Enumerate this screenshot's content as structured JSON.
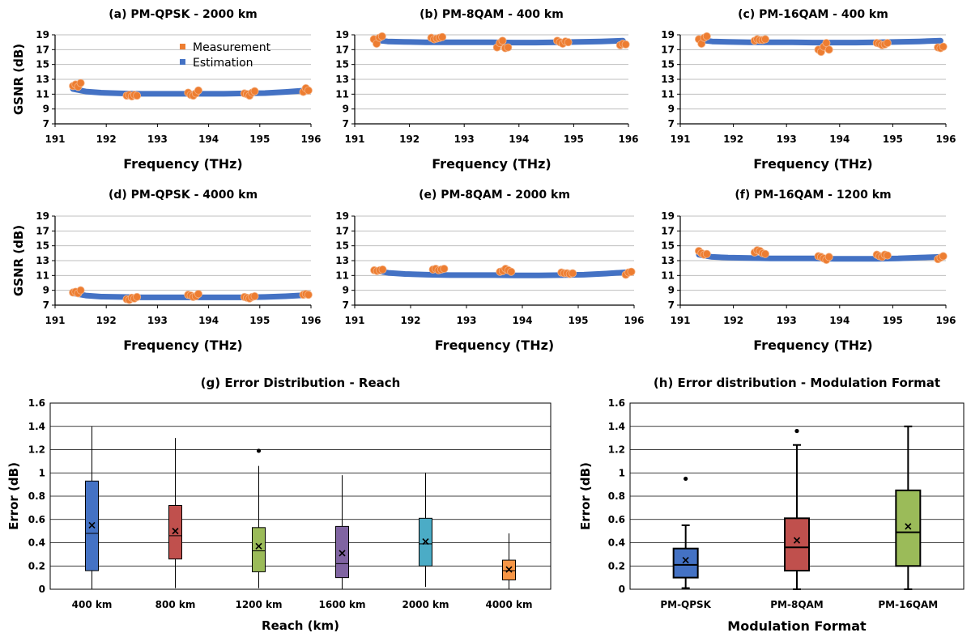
{
  "colors": {
    "measurement": "#ED7D31",
    "estimation": "#4472C4",
    "grid": "#BFBFBF",
    "box_400km": "#4472C4",
    "box_800km": "#C0504D",
    "box_1200km": "#9BBB59",
    "box_1600km": "#8064A2",
    "box_2000km": "#4BACC6",
    "box_4000km": "#F79646",
    "box_qpsk": "#4472C4",
    "box_8qam": "#C0504D",
    "box_16qam": "#9BBB59"
  },
  "chart_data": [
    {
      "type": "scatter",
      "panel": "a",
      "title": "(a)   PM-QPSK - 2000 km",
      "xlabel": "Frequency (THz)",
      "ylabel": "GSNR (dB)",
      "xlim": [
        191,
        196
      ],
      "ylim": [
        7,
        19
      ],
      "xticks": [
        191,
        192,
        193,
        194,
        195,
        196
      ],
      "yticks": [
        7,
        9,
        11,
        13,
        15,
        17,
        19
      ],
      "grid": true,
      "legend": "top-center",
      "series": [
        {
          "name": "Estimation",
          "x": [
            191.35,
            191.6,
            191.9,
            192.3,
            192.7,
            193.1,
            193.5,
            193.9,
            194.3,
            194.7,
            195.1,
            195.5,
            195.9
          ],
          "y": [
            11.7,
            11.35,
            11.2,
            11.1,
            11.05,
            11.05,
            11.05,
            11.05,
            11.05,
            11.1,
            11.15,
            11.3,
            11.5
          ]
        },
        {
          "name": "Measurement",
          "x": [
            191.35,
            191.4,
            191.45,
            191.5,
            192.4,
            192.45,
            192.5,
            192.55,
            192.6,
            193.6,
            193.65,
            193.7,
            193.75,
            193.8,
            194.7,
            194.75,
            194.8,
            194.85,
            194.9,
            195.85,
            195.9,
            195.95
          ],
          "y": [
            12.1,
            12.3,
            12.0,
            12.5,
            10.8,
            10.9,
            10.7,
            10.9,
            10.8,
            11.2,
            10.9,
            10.8,
            11.1,
            11.5,
            11.1,
            11.0,
            10.8,
            11.2,
            11.4,
            11.3,
            11.8,
            11.5
          ]
        }
      ]
    },
    {
      "type": "scatter",
      "panel": "b",
      "title": "(b)   PM-8QAM - 400 km",
      "xlabel": "Frequency (THz)",
      "ylabel": "",
      "xlim": [
        191,
        196
      ],
      "ylim": [
        7,
        19
      ],
      "xticks": [
        191,
        192,
        193,
        194,
        195,
        196
      ],
      "yticks": [
        7,
        9,
        11,
        13,
        15,
        17,
        19
      ],
      "grid": true,
      "series": [
        {
          "name": "Estimation",
          "x": [
            191.35,
            191.6,
            191.9,
            192.3,
            192.7,
            193.1,
            193.5,
            193.9,
            194.3,
            194.7,
            195.1,
            195.5,
            195.9
          ],
          "y": [
            18.3,
            18.1,
            18.05,
            18.0,
            18.0,
            18.0,
            18.0,
            17.95,
            17.95,
            18.0,
            18.05,
            18.1,
            18.2
          ]
        },
        {
          "name": "Measurement",
          "x": [
            191.35,
            191.4,
            191.45,
            191.5,
            192.4,
            192.45,
            192.5,
            192.55,
            192.6,
            193.6,
            193.65,
            193.7,
            193.75,
            193.8,
            194.7,
            194.75,
            194.8,
            194.85,
            194.9,
            195.85,
            195.9,
            195.95
          ],
          "y": [
            18.4,
            17.8,
            18.6,
            18.8,
            18.6,
            18.4,
            18.5,
            18.6,
            18.7,
            17.3,
            17.9,
            18.2,
            17.2,
            17.3,
            18.2,
            18.0,
            17.8,
            18.1,
            18.0,
            17.6,
            17.8,
            17.7
          ]
        }
      ]
    },
    {
      "type": "scatter",
      "panel": "c",
      "title": "(c)   PM-16QAM - 400 km",
      "xlabel": "Frequency (THz)",
      "ylabel": "",
      "xlim": [
        191,
        196
      ],
      "ylim": [
        7,
        19
      ],
      "xticks": [
        191,
        192,
        193,
        194,
        195,
        196
      ],
      "yticks": [
        7,
        9,
        11,
        13,
        15,
        17,
        19
      ],
      "grid": true,
      "series": [
        {
          "name": "Estimation",
          "x": [
            191.35,
            191.6,
            191.9,
            192.3,
            192.7,
            193.1,
            193.5,
            193.9,
            194.3,
            194.7,
            195.1,
            195.5,
            195.9
          ],
          "y": [
            18.3,
            18.1,
            18.05,
            18.0,
            18.0,
            18.0,
            17.95,
            17.95,
            17.95,
            18.0,
            18.05,
            18.1,
            18.2
          ]
        },
        {
          "name": "Measurement",
          "x": [
            191.35,
            191.4,
            191.45,
            191.5,
            192.4,
            192.45,
            192.5,
            192.55,
            192.6,
            193.6,
            193.65,
            193.7,
            193.75,
            193.8,
            194.7,
            194.75,
            194.8,
            194.85,
            194.9,
            195.85,
            195.9,
            195.95
          ],
          "y": [
            18.4,
            17.8,
            18.6,
            18.8,
            18.2,
            18.4,
            18.3,
            18.3,
            18.4,
            17.0,
            16.7,
            17.4,
            17.9,
            17.0,
            17.9,
            17.8,
            17.6,
            17.7,
            17.9,
            17.3,
            17.2,
            17.4
          ]
        }
      ]
    },
    {
      "type": "scatter",
      "panel": "d",
      "title": "(d)   PM-QPSK - 4000 km",
      "xlabel": "Frequency (THz)",
      "ylabel": "GSNR (dB)",
      "xlim": [
        191,
        196
      ],
      "ylim": [
        7,
        19
      ],
      "xticks": [
        191,
        192,
        193,
        194,
        195,
        196
      ],
      "yticks": [
        7,
        9,
        11,
        13,
        15,
        17,
        19
      ],
      "grid": true,
      "series": [
        {
          "name": "Estimation",
          "x": [
            191.35,
            191.6,
            191.9,
            192.3,
            192.7,
            193.1,
            193.5,
            193.9,
            194.3,
            194.7,
            195.1,
            195.5,
            195.9
          ],
          "y": [
            8.6,
            8.3,
            8.15,
            8.1,
            8.05,
            8.05,
            8.05,
            8.05,
            8.05,
            8.05,
            8.1,
            8.2,
            8.35
          ]
        },
        {
          "name": "Measurement",
          "x": [
            191.35,
            191.4,
            191.45,
            191.5,
            192.4,
            192.45,
            192.5,
            192.55,
            192.6,
            193.6,
            193.65,
            193.7,
            193.75,
            193.8,
            194.7,
            194.75,
            194.8,
            194.85,
            194.9,
            195.85,
            195.9,
            195.95
          ],
          "y": [
            8.7,
            8.8,
            8.6,
            9.0,
            7.8,
            7.7,
            8.0,
            7.9,
            8.1,
            8.4,
            8.3,
            8.1,
            8.2,
            8.5,
            8.1,
            8.0,
            7.9,
            8.1,
            8.2,
            8.4,
            8.5,
            8.4
          ]
        }
      ]
    },
    {
      "type": "scatter",
      "panel": "e",
      "title": "(e)   PM-8QAM - 2000 km",
      "xlabel": "Frequency (THz)",
      "ylabel": "",
      "xlim": [
        191,
        196
      ],
      "ylim": [
        7,
        19
      ],
      "xticks": [
        191,
        192,
        193,
        194,
        195,
        196
      ],
      "yticks": [
        7,
        9,
        11,
        13,
        15,
        17,
        19
      ],
      "grid": true,
      "series": [
        {
          "name": "Estimation",
          "x": [
            191.35,
            191.6,
            191.9,
            192.3,
            192.7,
            193.1,
            193.5,
            193.9,
            194.3,
            194.7,
            195.1,
            195.5,
            195.9
          ],
          "y": [
            11.7,
            11.35,
            11.2,
            11.1,
            11.05,
            11.05,
            11.05,
            11.0,
            11.0,
            11.05,
            11.1,
            11.25,
            11.45
          ]
        },
        {
          "name": "Measurement",
          "x": [
            191.35,
            191.4,
            191.45,
            191.5,
            192.4,
            192.45,
            192.5,
            192.55,
            192.6,
            193.6,
            193.65,
            193.7,
            193.75,
            193.8,
            194.7,
            194.75,
            194.8,
            194.85,
            194.9,
            195.85,
            195.9,
            195.95
          ],
          "y": [
            11.7,
            11.6,
            11.7,
            11.8,
            11.8,
            11.9,
            11.7,
            11.8,
            11.9,
            11.5,
            11.6,
            11.9,
            11.7,
            11.5,
            11.4,
            11.3,
            11.3,
            11.2,
            11.3,
            11.1,
            11.4,
            11.5
          ]
        }
      ]
    },
    {
      "type": "scatter",
      "panel": "f",
      "title": "(f)   PM-16QAM - 1200 km",
      "xlabel": "Frequency (THz)",
      "ylabel": "",
      "xlim": [
        191,
        196
      ],
      "ylim": [
        7,
        19
      ],
      "xticks": [
        191,
        192,
        193,
        194,
        195,
        196
      ],
      "yticks": [
        7,
        9,
        11,
        13,
        15,
        17,
        19
      ],
      "grid": true,
      "series": [
        {
          "name": "Estimation",
          "x": [
            191.35,
            191.6,
            191.9,
            192.3,
            192.7,
            193.1,
            193.5,
            193.9,
            194.3,
            194.7,
            195.1,
            195.5,
            195.9
          ],
          "y": [
            13.8,
            13.5,
            13.4,
            13.35,
            13.3,
            13.3,
            13.3,
            13.25,
            13.25,
            13.25,
            13.3,
            13.4,
            13.5
          ]
        },
        {
          "name": "Measurement",
          "x": [
            191.35,
            191.4,
            191.45,
            191.5,
            192.4,
            192.45,
            192.5,
            192.55,
            192.6,
            193.6,
            193.65,
            193.7,
            193.75,
            193.8,
            194.7,
            194.75,
            194.8,
            194.85,
            194.9,
            195.85,
            195.9,
            195.95
          ],
          "y": [
            14.3,
            14.0,
            13.8,
            13.9,
            14.1,
            14.4,
            14.3,
            14.0,
            13.9,
            13.6,
            13.5,
            13.3,
            13.1,
            13.5,
            13.8,
            13.6,
            13.5,
            13.8,
            13.7,
            13.2,
            13.4,
            13.6
          ]
        }
      ]
    },
    {
      "type": "box",
      "panel": "g",
      "title": "(g)   Error Distribution - Reach",
      "xlabel": "Reach (km)",
      "ylabel": "Error (dB)",
      "ylim": [
        0,
        1.6
      ],
      "yticks": [
        "0",
        "0.2",
        "0.4",
        "0.6",
        "0.8",
        "1",
        "1.2",
        "1.4",
        "1.6"
      ],
      "grid": true,
      "categories": [
        "400 km",
        "800 km",
        "1200 km",
        "1600 km",
        "2000 km",
        "4000 km"
      ],
      "boxes": [
        {
          "min": 0.0,
          "q1": 0.16,
          "median": 0.48,
          "q3": 0.93,
          "max": 1.4,
          "mean": 0.55,
          "outliers": []
        },
        {
          "min": 0.01,
          "q1": 0.26,
          "median": 0.46,
          "q3": 0.72,
          "max": 1.3,
          "mean": 0.5,
          "outliers": []
        },
        {
          "min": 0.01,
          "q1": 0.15,
          "median": 0.33,
          "q3": 0.53,
          "max": 1.06,
          "mean": 0.37,
          "outliers": [
            1.19
          ]
        },
        {
          "min": 0.0,
          "q1": 0.1,
          "median": 0.22,
          "q3": 0.54,
          "max": 0.98,
          "mean": 0.31,
          "outliers": []
        },
        {
          "min": 0.02,
          "q1": 0.2,
          "median": 0.39,
          "q3": 0.61,
          "max": 1.0,
          "mean": 0.41,
          "outliers": []
        },
        {
          "min": 0.0,
          "q1": 0.08,
          "median": 0.16,
          "q3": 0.25,
          "max": 0.48,
          "mean": 0.17,
          "outliers": []
        }
      ]
    },
    {
      "type": "box",
      "panel": "h",
      "title": "(h)   Error distribution - Modulation Format",
      "xlabel": "Modulation Format",
      "ylabel": "Error (dB)",
      "ylim": [
        0,
        1.6
      ],
      "yticks": [
        "0",
        "0.2",
        "0.4",
        "0.6",
        "0.8",
        "1",
        "1.2",
        "1.4",
        "1.6"
      ],
      "grid": true,
      "categories": [
        "PM-QPSK",
        "PM-8QAM",
        "PM-16QAM"
      ],
      "boxes": [
        {
          "min": 0.01,
          "q1": 0.1,
          "median": 0.21,
          "q3": 0.35,
          "max": 0.55,
          "mean": 0.25,
          "outliers": [
            0.95
          ]
        },
        {
          "min": 0.0,
          "q1": 0.16,
          "median": 0.36,
          "q3": 0.61,
          "max": 1.24,
          "mean": 0.42,
          "outliers": [
            1.36
          ]
        },
        {
          "min": 0.0,
          "q1": 0.2,
          "median": 0.49,
          "q3": 0.85,
          "max": 1.4,
          "mean": 0.54,
          "outliers": []
        }
      ]
    }
  ]
}
